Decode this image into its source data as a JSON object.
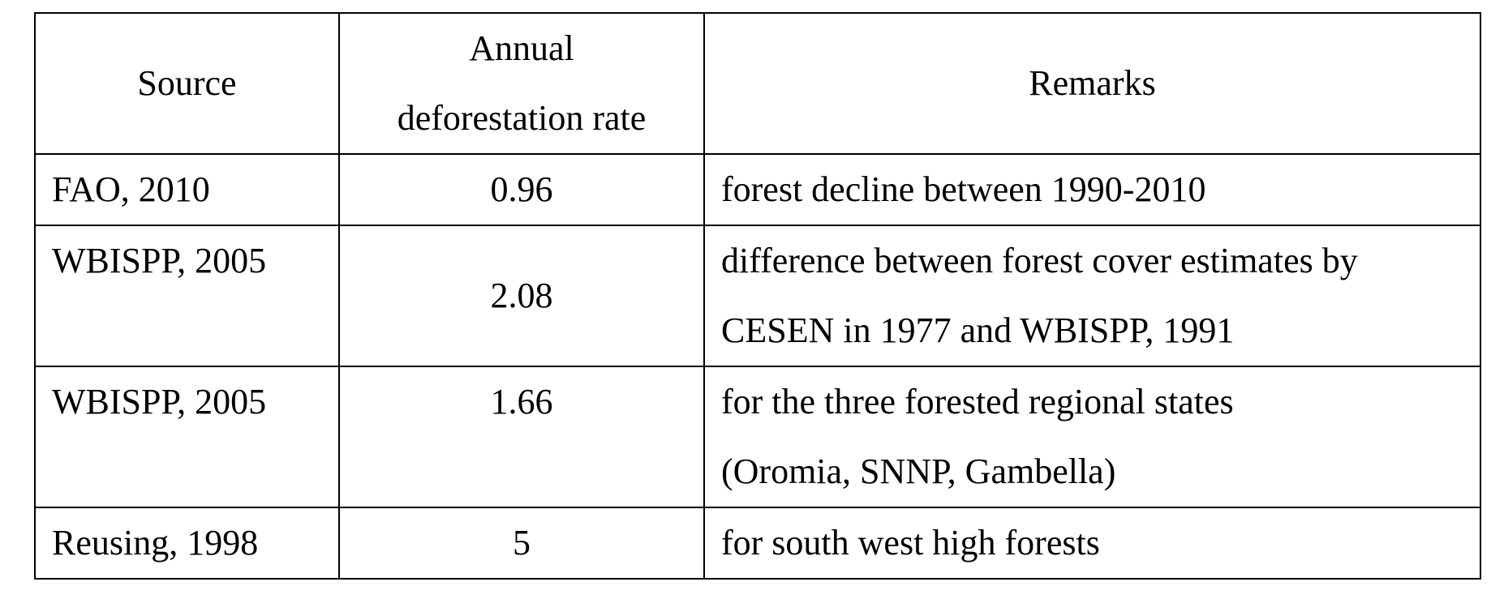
{
  "table": {
    "headers": {
      "source": "Source",
      "rate_line1": "Annual",
      "rate_line2": "deforestation rate",
      "remarks": "Remarks"
    },
    "rows": [
      {
        "source": "FAO, 2010",
        "rate": "0.96",
        "remarks": [
          "forest decline between 1990-2010"
        ]
      },
      {
        "source": "WBISPP, 2005",
        "rate": "2.08",
        "remarks": [
          "difference between forest cover estimates by",
          "CESEN in 1977 and WBISPP, 1991"
        ]
      },
      {
        "source": "WBISPP, 2005",
        "rate": "1.66",
        "remarks": [
          "for the three forested regional states",
          "(Oromia, SNNP, Gambella)"
        ]
      },
      {
        "source": "Reusing, 1998",
        "rate": "5",
        "remarks": [
          "for south west high forests"
        ]
      }
    ]
  }
}
